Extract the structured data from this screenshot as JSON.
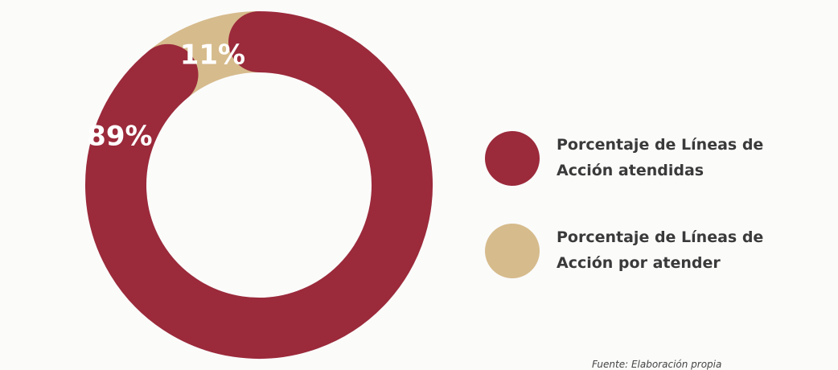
{
  "chart_data": {
    "type": "donut",
    "categories": [
      "Porcentaje de Líneas de Acción atendidas",
      "Porcentaje de Líneas de Acción por atender"
    ],
    "values": [
      89,
      11
    ],
    "value_labels": [
      "89%",
      "11%"
    ],
    "colors": [
      "#9b2a3b",
      "#d6bb8c"
    ],
    "source": "Fuente: Elaboración propia"
  }
}
